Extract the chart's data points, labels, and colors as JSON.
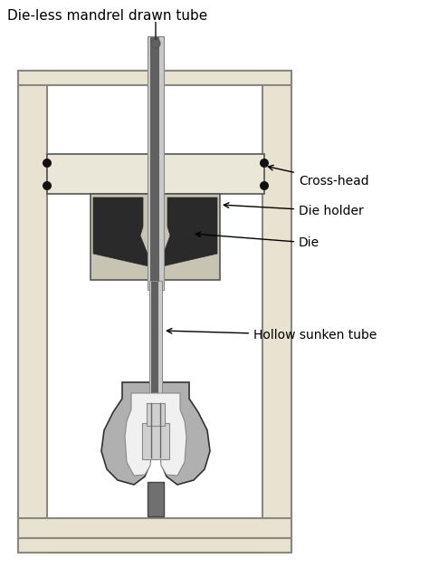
{
  "title": "Die-less mandrel drawn tube",
  "labels": {
    "cross_head": "Cross-head",
    "die_holder": "Die holder",
    "die": "Die",
    "hollow_sunken_tube": "Hollow sunken tube"
  },
  "colors": {
    "background": "#ffffff",
    "frame_fill": "#e8e3d0",
    "frame_border": "#888880",
    "crosshead_fill": "#eae6d8",
    "crosshead_border": "#555555",
    "die_holder_fill": "#d0cdc0",
    "die_holder_border": "#555555",
    "die_dark": "#2a2a2a",
    "die_holder_light": "#c8c4b4",
    "tube_outer": "#b0b0b0",
    "tube_dark": "#606060",
    "tube_light": "#c8c8c8",
    "grip_outer": "#b0b0b0",
    "grip_inner_white": "#f0f0f0",
    "grip_mid": "#d0d0d0",
    "grip_border": "#333333",
    "stem_dark": "#707070",
    "stem_border": "#444444",
    "dot_color": "#111111",
    "arrow_color": "#000000",
    "text_color": "#000000"
  },
  "figsize": [
    4.74,
    6.27
  ],
  "dpi": 100
}
